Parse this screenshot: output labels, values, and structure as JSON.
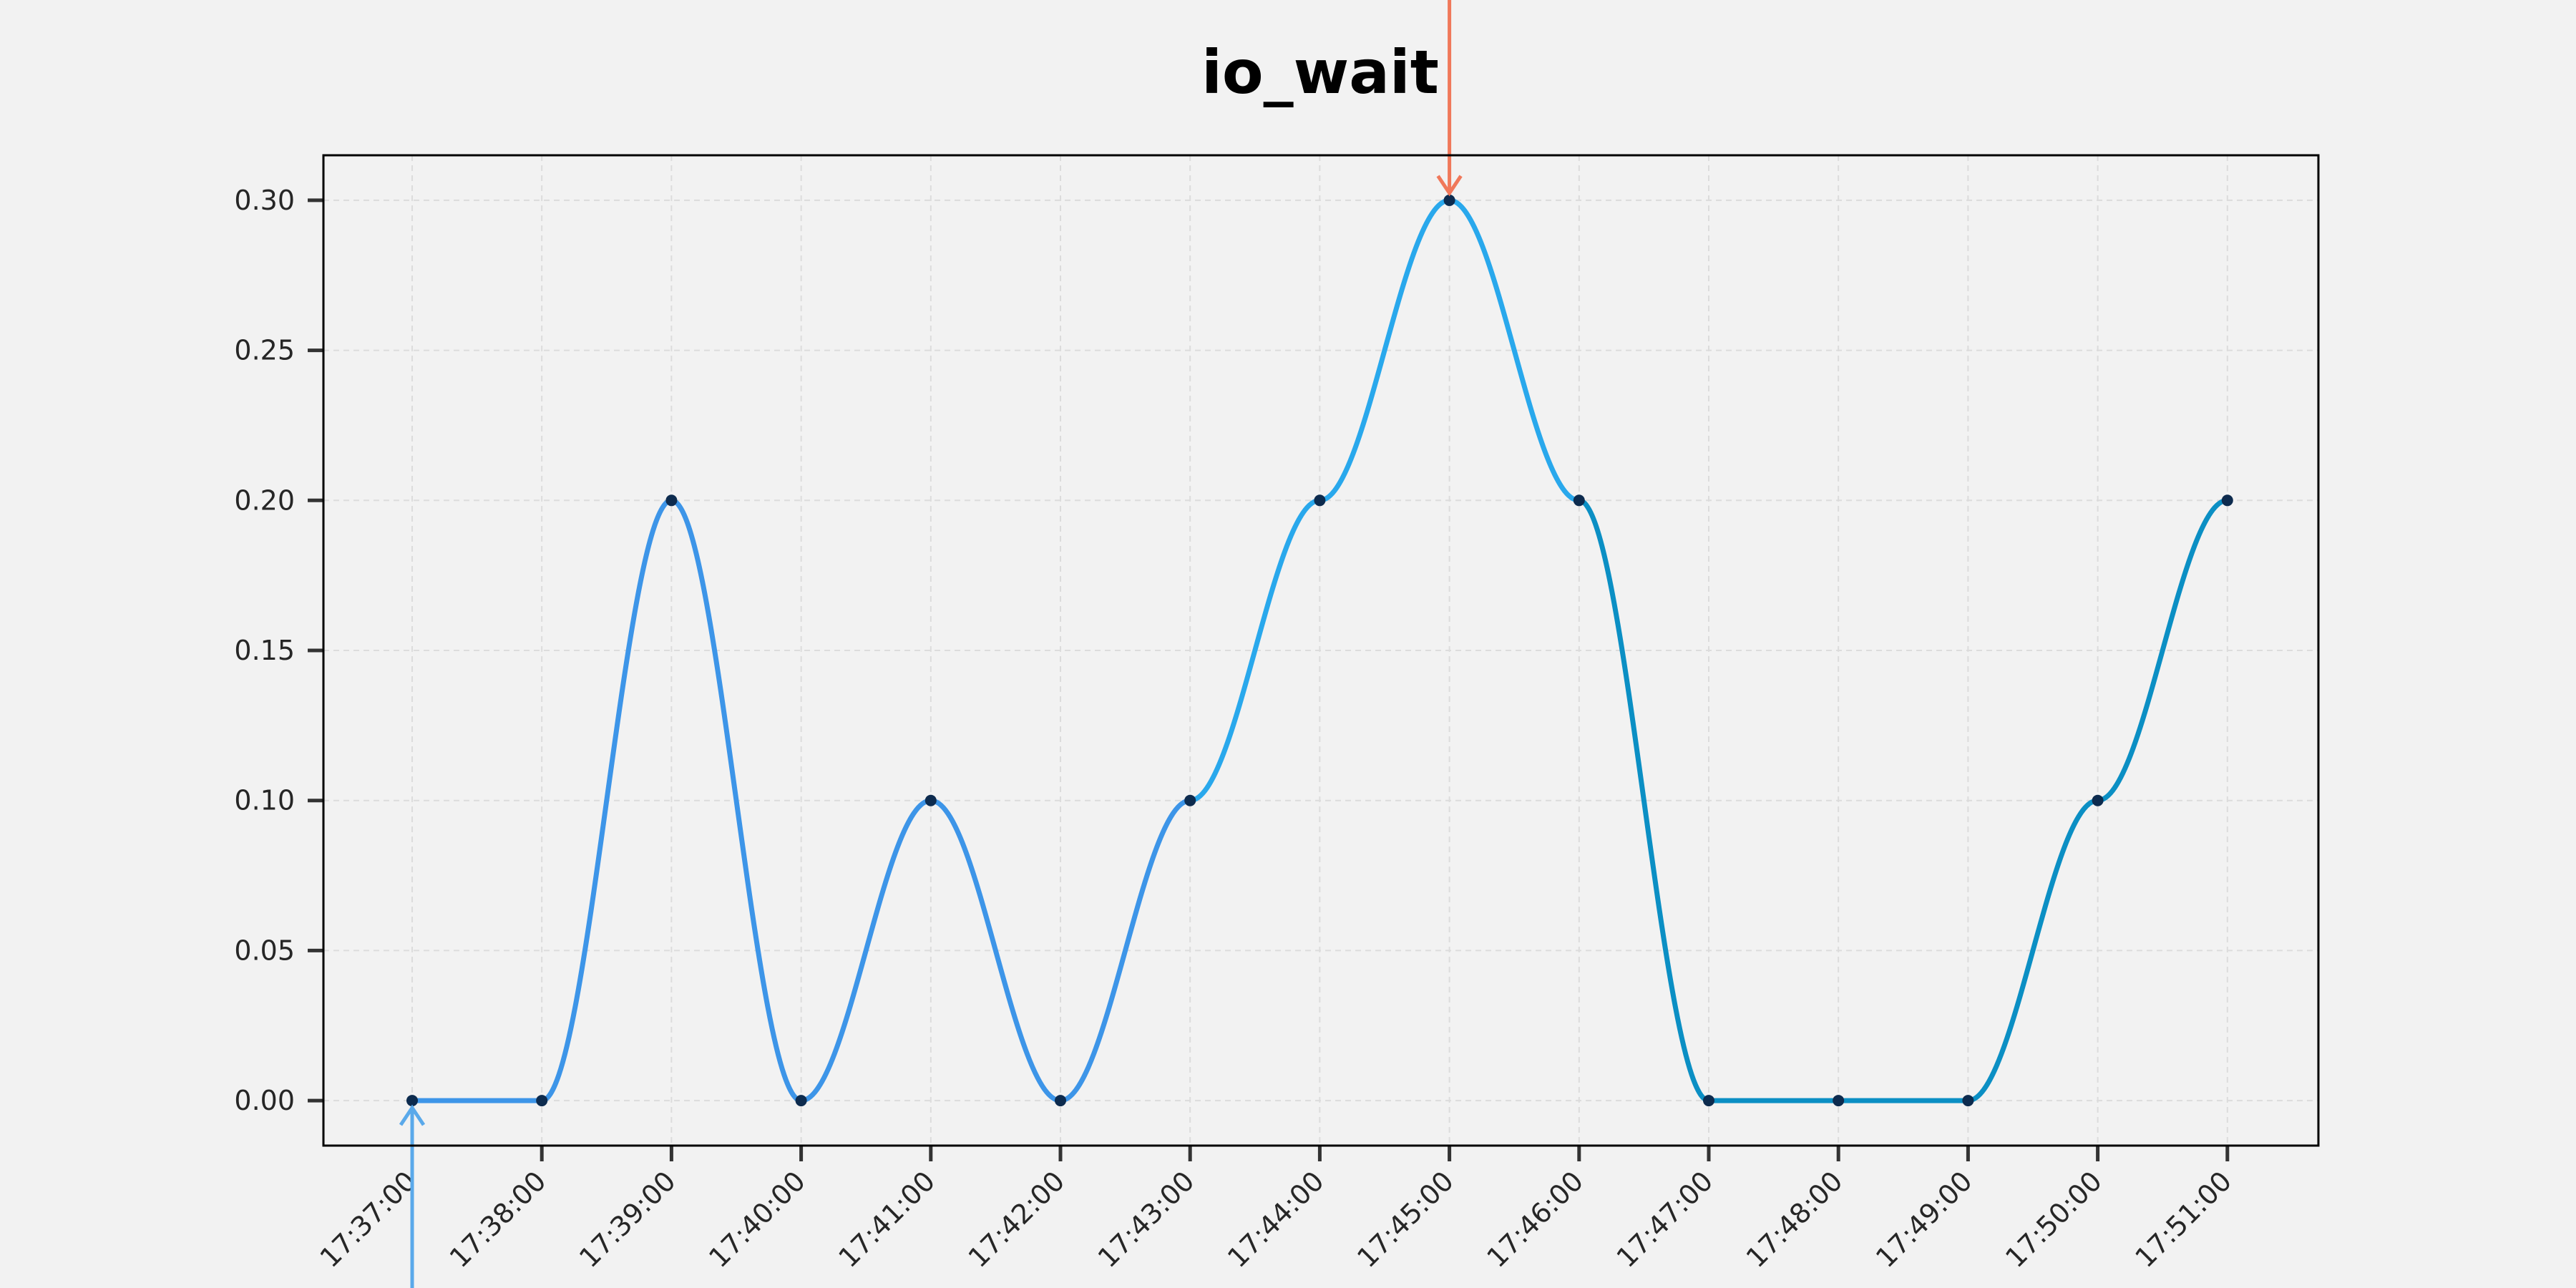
{
  "chart_data": {
    "type": "line",
    "title": "io_wait",
    "xlabel": "",
    "ylabel": "",
    "x": [
      "17:37:00",
      "17:38:00",
      "17:39:00",
      "17:40:00",
      "17:41:00",
      "17:42:00",
      "17:43:00",
      "17:44:00",
      "17:45:00",
      "17:46:00",
      "17:47:00",
      "17:48:00",
      "17:49:00",
      "17:50:00",
      "17:51:00"
    ],
    "series": [
      {
        "values": [
          0.0,
          0.0,
          0.2,
          0.0,
          0.1,
          0.0,
          0.1,
          0.2,
          0.3,
          0.2,
          0.0,
          0.0,
          0.0,
          0.1,
          0.2
        ]
      }
    ],
    "ylim": [
      -0.015,
      0.315
    ],
    "yticks": [
      "0.00",
      "0.05",
      "0.10",
      "0.15",
      "0.20",
      "0.25",
      "0.30"
    ],
    "grid": true,
    "annotations": [
      {
        "type": "arrow",
        "at": "17:45:00",
        "direction": "down",
        "marks": "max"
      },
      {
        "type": "arrow",
        "at": "17:37:00",
        "direction": "up",
        "marks": "min"
      }
    ],
    "colors": {
      "background": "#f2f2f2",
      "line_start": "#3d95e8",
      "line_mid": "#29a8ec",
      "line_end": "#0b8fc4",
      "points": "#0d2b4e",
      "max_arrow": "#f0785a",
      "min_arrow": "#5aa9ea"
    }
  }
}
